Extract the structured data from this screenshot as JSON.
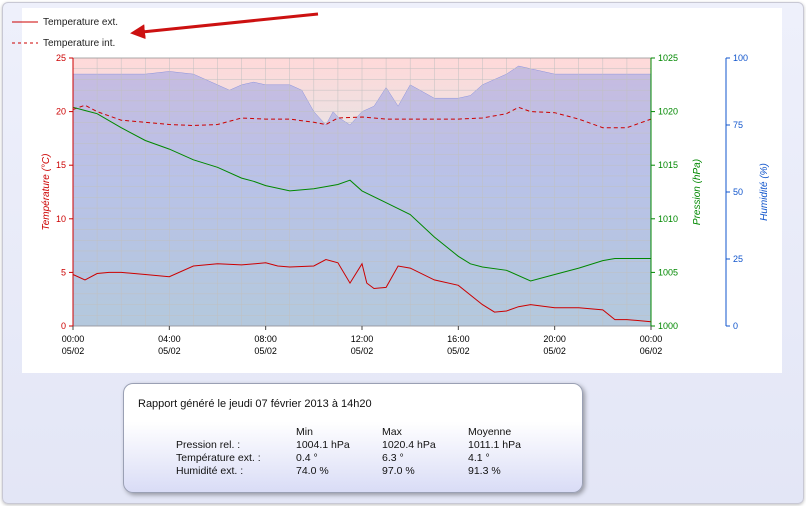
{
  "chart_data": {
    "type": "line",
    "legend": {
      "position": "top-left",
      "entries": [
        {
          "label": "Temperature ext.",
          "color": "#cc0000",
          "style": "solid"
        },
        {
          "label": "Temperature int.",
          "color": "#cc0000",
          "style": "dashed"
        }
      ]
    },
    "x_ticks": [
      {
        "time": "00:00",
        "date": "05/02",
        "hour": 0
      },
      {
        "time": "04:00",
        "date": "05/02",
        "hour": 4
      },
      {
        "time": "08:00",
        "date": "05/02",
        "hour": 8
      },
      {
        "time": "12:00",
        "date": "05/02",
        "hour": 12
      },
      {
        "time": "16:00",
        "date": "05/02",
        "hour": 16
      },
      {
        "time": "20:00",
        "date": "05/02",
        "hour": 20
      },
      {
        "time": "00:00",
        "date": "06/02",
        "hour": 24
      }
    ],
    "axes": {
      "temperature": {
        "label": "Température (°C)",
        "min": 0,
        "max": 25,
        "ticks": [
          "0",
          "5",
          "10",
          "15",
          "20",
          "25"
        ],
        "color": "#cc0000"
      },
      "pressure": {
        "label": "Pression (hPa)",
        "min": 1000,
        "max": 1025,
        "ticks": [
          "1000",
          "1005",
          "1010",
          "1015",
          "1020",
          "1025"
        ],
        "color": "#008800"
      },
      "humidity": {
        "label": "Humidité (%)",
        "min": 0,
        "max": 100,
        "ticks": [
          "0",
          "25",
          "50",
          "75",
          "100"
        ],
        "color": "#1155cc"
      }
    },
    "grid": true,
    "series": [
      {
        "name": "Temperature ext.",
        "axis": "temperature",
        "color": "#cc0000",
        "style": "solid",
        "x": [
          0,
          0.5,
          1,
          1.5,
          2,
          3,
          4,
          5,
          6,
          7,
          8,
          8.5,
          9,
          10,
          10.5,
          11,
          11.5,
          12,
          12.2,
          12.5,
          13,
          13.5,
          14,
          15,
          16,
          17,
          17.5,
          18,
          18.5,
          19,
          20,
          21,
          22,
          22.5,
          23,
          24
        ],
        "y": [
          4.8,
          4.3,
          4.9,
          5.0,
          5.0,
          4.8,
          4.6,
          5.6,
          5.8,
          5.7,
          5.9,
          5.6,
          5.5,
          5.6,
          6.2,
          5.9,
          4.0,
          5.8,
          4.0,
          3.5,
          3.6,
          5.6,
          5.4,
          4.3,
          3.8,
          2.0,
          1.3,
          1.4,
          1.8,
          2.0,
          1.7,
          1.7,
          1.5,
          0.6,
          0.6,
          0.4
        ]
      },
      {
        "name": "Temperature int.",
        "axis": "temperature",
        "color": "#cc0000",
        "style": "dashed",
        "x": [
          0,
          0.5,
          1,
          2,
          3,
          4,
          5,
          6,
          7,
          8,
          9,
          10,
          10.5,
          11,
          12,
          13,
          14,
          15,
          16,
          17,
          18,
          18.5,
          19,
          20,
          21,
          22,
          23,
          24
        ],
        "y": [
          20.2,
          20.6,
          20.0,
          19.2,
          19.0,
          18.8,
          18.7,
          18.8,
          19.4,
          19.3,
          19.3,
          19.0,
          18.8,
          19.4,
          19.5,
          19.3,
          19.3,
          19.3,
          19.3,
          19.4,
          19.8,
          20.4,
          20.0,
          19.9,
          19.3,
          18.5,
          18.5,
          19.3
        ]
      },
      {
        "name": "Pression rel.",
        "axis": "pressure",
        "color": "#008800",
        "style": "solid",
        "x": [
          0,
          0.5,
          1,
          2,
          3,
          4,
          5,
          6,
          7,
          7.5,
          8,
          9,
          10,
          11,
          11.5,
          12,
          13,
          14,
          15,
          16,
          16.5,
          17,
          18,
          19,
          20,
          21,
          22,
          22.5,
          23,
          24
        ],
        "y": [
          1020.4,
          1020.1,
          1019.8,
          1018.5,
          1017.3,
          1016.5,
          1015.5,
          1014.8,
          1013.8,
          1013.5,
          1013.1,
          1012.6,
          1012.8,
          1013.2,
          1013.6,
          1012.6,
          1011.5,
          1010.4,
          1008.3,
          1006.5,
          1005.8,
          1005.5,
          1005.2,
          1004.2,
          1004.8,
          1005.4,
          1006.1,
          1006.3,
          1006.3,
          1006.3
        ]
      },
      {
        "name": "Humidité ext.",
        "axis": "humidity",
        "color": "#9aa2e6",
        "style": "area",
        "x": [
          0,
          1,
          2,
          3,
          4,
          5,
          6,
          6.5,
          7,
          7.5,
          8,
          9,
          9.5,
          10,
          10.5,
          10.8,
          11,
          11.5,
          12,
          12.5,
          13,
          13.5,
          14,
          15,
          16,
          16.5,
          17,
          18,
          18.5,
          19,
          20,
          21,
          22,
          23,
          24
        ],
        "y": [
          94,
          94,
          94,
          94,
          95,
          94,
          90,
          88,
          90,
          91,
          90,
          90,
          88,
          80,
          75,
          80,
          78,
          75,
          80,
          82,
          89,
          82,
          90,
          85,
          85,
          86,
          90,
          94,
          97,
          96,
          94,
          94,
          94,
          94,
          94
        ]
      }
    ]
  },
  "report": {
    "title": "Rapport généré le jeudi 07 février 2013 à 14h20",
    "headers": [
      "",
      "Min",
      "Max",
      "Moyenne"
    ],
    "rows": [
      {
        "label": "Pression rel. :",
        "min": "1004.1 hPa",
        "max": "1020.4 hPa",
        "avg": "1011.1 hPa"
      },
      {
        "label": "Température ext. :",
        "min": "0.4 °",
        "max": "6.3 °",
        "avg": "4.1 °"
      },
      {
        "label": "Humidité ext. :",
        "min": "74.0 %",
        "max": "97.0 %",
        "avg": "91.3 %"
      }
    ]
  }
}
